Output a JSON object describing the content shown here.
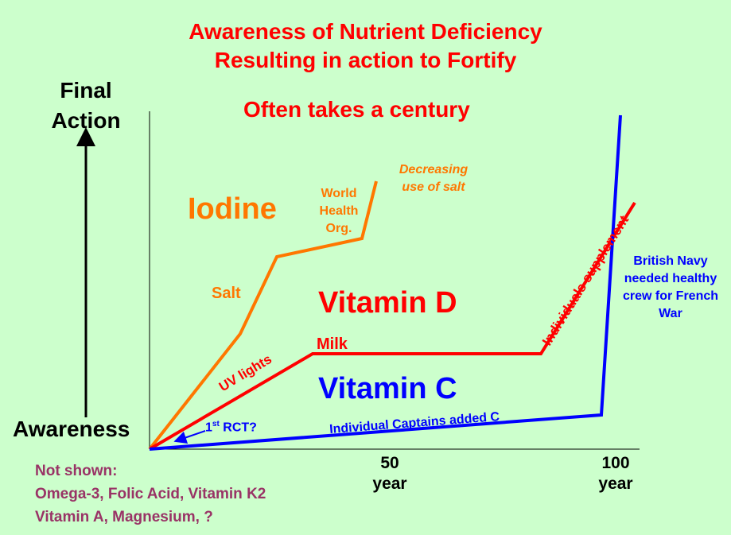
{
  "title": {
    "line1": "Awareness of Nutrient Deficiency",
    "line2": "Resulting in action to Fortify",
    "subtitle": "Often takes a century"
  },
  "y_axis": {
    "top_label_1": "Final",
    "top_label_2": "Action",
    "bottom_label": "Awareness"
  },
  "x_axis": {
    "tick_50": "50",
    "tick_100": "100",
    "unit": "year"
  },
  "iodine": {
    "name": "Iodine",
    "salt": "Salt",
    "who_1": "World",
    "who_2": "Health",
    "who_3": "Org.",
    "decreasing_1": "Decreasing",
    "decreasing_2": "use of salt"
  },
  "vitamin_d": {
    "name": "Vitamin D",
    "milk": "Milk",
    "uv": "UV lights",
    "supplement": "Individuals supplement"
  },
  "vitamin_c": {
    "name": "Vitamin C",
    "rct_sup": "st",
    "rct_pre": "1",
    "rct_post": " RCT?",
    "captains": "Individual Captains added C",
    "navy_1": "British Navy",
    "navy_2": "needed healthy",
    "navy_3": "crew for French",
    "navy_4": "War"
  },
  "not_shown": {
    "line1": "Not shown:",
    "line2": "Omega-3, Folic Acid, Vitamin K2",
    "line3": "Vitamin A, Magnesium, ?"
  },
  "colors": {
    "background": "#ccffcc",
    "title": "#ff0000",
    "iodine": "#ff7700",
    "vitamin_d": "#ff0000",
    "vitamin_c": "#0000ff",
    "not_shown": "#993366"
  }
}
